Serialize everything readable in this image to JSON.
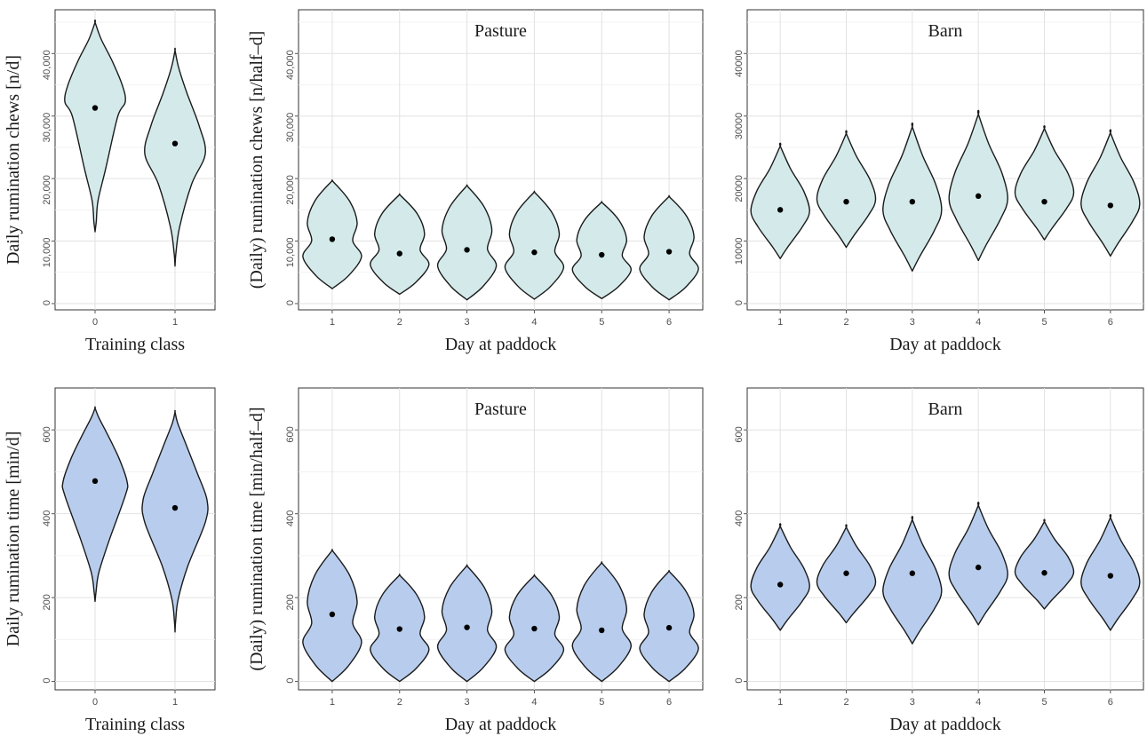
{
  "colors": {
    "chews_fill": "#d4eaea",
    "time_fill": "#b8cded",
    "median_dot": "#000000"
  },
  "chart_data": [
    {
      "id": "chews-training",
      "type": "violin",
      "title": "",
      "xlabel": "Training class",
      "ylabel": "Daily rumination chews [n/d]",
      "fill": "#d4eaea",
      "categories": [
        "0",
        "1"
      ],
      "medians": [
        31300,
        25600
      ],
      "mins": [
        11500,
        6000
      ],
      "maxs": [
        45000,
        40500
      ],
      "ylim": [
        -1000,
        47000
      ],
      "yticks": [
        0,
        10000,
        20000,
        30000,
        40000
      ],
      "ytick_labels": [
        "0",
        "10,000",
        "20,000",
        "30,000",
        "40,000"
      ],
      "grid": true
    },
    {
      "id": "chews-pasture",
      "type": "violin",
      "title": "Pasture",
      "xlabel": "Day at paddock",
      "ylabel": "(Daily) rumination chews [n/half–d]",
      "fill": "#d4eaea",
      "categories": [
        "1",
        "2",
        "3",
        "4",
        "5",
        "6"
      ],
      "medians": [
        10300,
        8000,
        8600,
        8200,
        7800,
        8300
      ],
      "mins": [
        2400,
        1500,
        600,
        700,
        800,
        600
      ],
      "maxs": [
        19400,
        17200,
        18600,
        17600,
        16000,
        16900
      ],
      "ylim": [
        -1000,
        47000
      ],
      "yticks": [
        0,
        10000,
        20000,
        30000,
        40000
      ],
      "ytick_labels": [
        "0",
        "10,000",
        "20,000",
        "30,000",
        "40,000"
      ],
      "grid": true
    },
    {
      "id": "chews-barn",
      "type": "violin",
      "title": "Barn",
      "xlabel": "Day at paddock",
      "ylabel": "",
      "fill": "#d4eaea",
      "categories": [
        "1",
        "2",
        "3",
        "4",
        "5",
        "6"
      ],
      "medians": [
        15000,
        16300,
        16300,
        17200,
        16300,
        15700
      ],
      "mins": [
        7200,
        9000,
        5200,
        6900,
        10200,
        7600
      ],
      "maxs": [
        25200,
        27200,
        28300,
        30300,
        28000,
        27300
      ],
      "ylim": [
        -1000,
        47000
      ],
      "yticks": [
        0,
        10000,
        20000,
        30000,
        40000
      ],
      "ytick_labels": [
        "0",
        "10000",
        "20000",
        "30000",
        "40000"
      ],
      "grid": true
    },
    {
      "id": "time-training",
      "type": "violin",
      "title": "",
      "xlabel": "Training class",
      "ylabel": "Daily rumination time [min/d]",
      "fill": "#b8cded",
      "categories": [
        "0",
        "1"
      ],
      "medians": [
        478,
        414
      ],
      "mins": [
        191,
        118
      ],
      "maxs": [
        652,
        643
      ],
      "ylim": [
        -20,
        700
      ],
      "yticks": [
        0,
        200,
        400,
        600
      ],
      "ytick_labels": [
        "0",
        "200",
        "400",
        "600"
      ],
      "grid": true
    },
    {
      "id": "time-pasture",
      "type": "violin",
      "title": "Pasture",
      "xlabel": "Day at paddock",
      "ylabel": "(Daily) rumination time [min/half–d]",
      "fill": "#b8cded",
      "categories": [
        "1",
        "2",
        "3",
        "4",
        "5",
        "6"
      ],
      "medians": [
        160,
        125,
        129,
        126,
        122,
        128
      ],
      "mins": [
        0,
        0,
        0,
        0,
        0,
        0
      ],
      "maxs": [
        308,
        250,
        272,
        249,
        279,
        259
      ],
      "ylim": [
        -20,
        700
      ],
      "yticks": [
        0,
        200,
        400,
        600
      ],
      "ytick_labels": [
        "0",
        "200",
        "400",
        "600"
      ],
      "grid": true
    },
    {
      "id": "time-barn",
      "type": "violin",
      "title": "Barn",
      "xlabel": "Day at paddock",
      "ylabel": "",
      "fill": "#b8cded",
      "categories": [
        "1",
        "2",
        "3",
        "4",
        "5",
        "6"
      ],
      "medians": [
        231,
        258,
        258,
        272,
        259,
        252
      ],
      "mins": [
        122,
        140,
        90,
        135,
        173,
        122
      ],
      "maxs": [
        370,
        368,
        386,
        420,
        381,
        391
      ],
      "ylim": [
        -20,
        700
      ],
      "yticks": [
        0,
        200,
        400,
        600
      ],
      "ytick_labels": [
        "0",
        "200",
        "400",
        "600"
      ],
      "grid": true
    }
  ]
}
